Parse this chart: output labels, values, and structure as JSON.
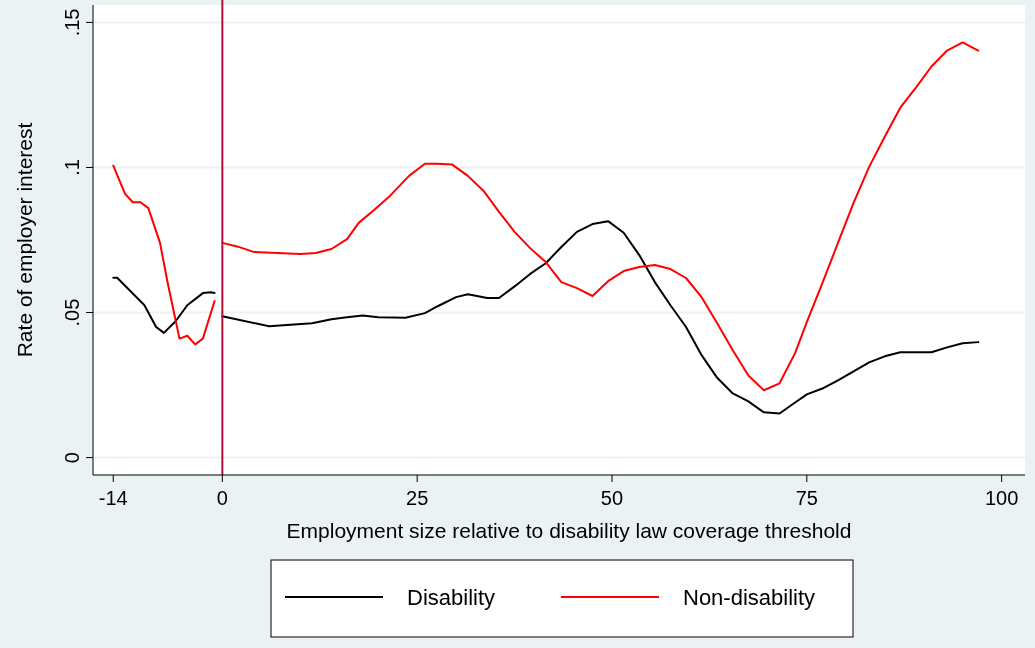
{
  "chart_data": {
    "type": "line",
    "xlabel": "Employment size relative to disability law coverage threshold",
    "ylabel": "Rate of employer interest",
    "xlim": [
      -16.6,
      103
    ],
    "ylim": [
      -0.006,
      0.156
    ],
    "xticks": [
      -14,
      0,
      25,
      50,
      75,
      100
    ],
    "yticks": [
      {
        "value": 0,
        "label": "0"
      },
      {
        "value": 0.05,
        "label": ".05"
      },
      {
        "value": 0.1,
        "label": ".1"
      },
      {
        "value": 0.15,
        "label": ".15"
      }
    ],
    "grid": "y",
    "legend": "bottom",
    "line_style": "solid",
    "marker": "none",
    "ref_lines": [
      {
        "axis": "x",
        "value": 0,
        "color": "#b0103a"
      }
    ],
    "series": [
      {
        "name": "Disability",
        "color": "#000000",
        "x": [
          -14,
          -13.5,
          -10,
          -8.5,
          -7.5,
          -6,
          -4.5,
          -2.5,
          -1.5,
          -1,
          0,
          6,
          11.5,
          14,
          16,
          18,
          20,
          23.5,
          26,
          27.5,
          30,
          31.5,
          34,
          35.5,
          37.5,
          39.5,
          41.5,
          43.5,
          45.5,
          47.5,
          49.5,
          51.5,
          53.5,
          55.5,
          57.5,
          59.5,
          61.5,
          63.5,
          65.5,
          67.5,
          69.5,
          71.5,
          73.5,
          75,
          77,
          79,
          81,
          83,
          85,
          87,
          91,
          93,
          95,
          97
        ],
        "values": [
          0.062,
          0.062,
          0.0525,
          0.045,
          0.043,
          0.047,
          0.0525,
          0.0567,
          0.057,
          0.0567,
          0.0487,
          0.0453,
          0.0463,
          0.0477,
          0.0484,
          0.049,
          0.0484,
          0.0482,
          0.0498,
          0.052,
          0.0553,
          0.0563,
          0.055,
          0.055,
          0.059,
          0.0633,
          0.067,
          0.0726,
          0.0778,
          0.0805,
          0.0815,
          0.0775,
          0.0698,
          0.0605,
          0.0525,
          0.045,
          0.0353,
          0.0275,
          0.0221,
          0.0194,
          0.0156,
          0.0152,
          0.019,
          0.0218,
          0.0238,
          0.0266,
          0.0297,
          0.0328,
          0.0349,
          0.0363,
          0.0363,
          0.038,
          0.0394,
          0.0398
        ]
      },
      {
        "name": "Non-disability",
        "color": "#ff0000",
        "x": [
          -14,
          -12.5,
          -11.5,
          -10.5,
          -9.5,
          -8,
          -7,
          -5.5,
          -4.5,
          -3.5,
          -2.5,
          -1,
          0,
          2,
          4,
          10,
          12,
          14,
          16,
          17.5,
          19.5,
          21.5,
          24,
          26,
          27.5,
          29.5,
          31.5,
          33.5,
          35.5,
          37.5,
          39.5,
          41.5,
          43.5,
          45.5,
          47.5,
          49.5,
          51.5,
          53.5,
          55.5,
          57.5,
          59.5,
          61.5,
          63.5,
          65.5,
          67.5,
          69.5,
          71.5,
          73.5,
          75,
          77,
          79,
          81,
          83,
          85,
          87,
          89,
          91,
          93,
          95,
          97
        ],
        "values": [
          0.1006,
          0.091,
          0.088,
          0.088,
          0.086,
          0.074,
          0.06,
          0.041,
          0.042,
          0.039,
          0.041,
          0.054,
          0.074,
          0.0727,
          0.0709,
          0.0702,
          0.0705,
          0.0719,
          0.0753,
          0.0809,
          0.0854,
          0.0902,
          0.0972,
          0.1013,
          0.1013,
          0.101,
          0.0971,
          0.092,
          0.0847,
          0.0778,
          0.0722,
          0.0674,
          0.0605,
          0.0584,
          0.0557,
          0.0608,
          0.0643,
          0.0657,
          0.0664,
          0.065,
          0.0619,
          0.0553,
          0.0463,
          0.037,
          0.0283,
          0.0232,
          0.0256,
          0.036,
          0.0467,
          0.0601,
          0.074,
          0.0878,
          0.1002,
          0.1106,
          0.1206,
          0.1275,
          0.1348,
          0.1403,
          0.1431,
          0.1403
        ]
      }
    ]
  }
}
